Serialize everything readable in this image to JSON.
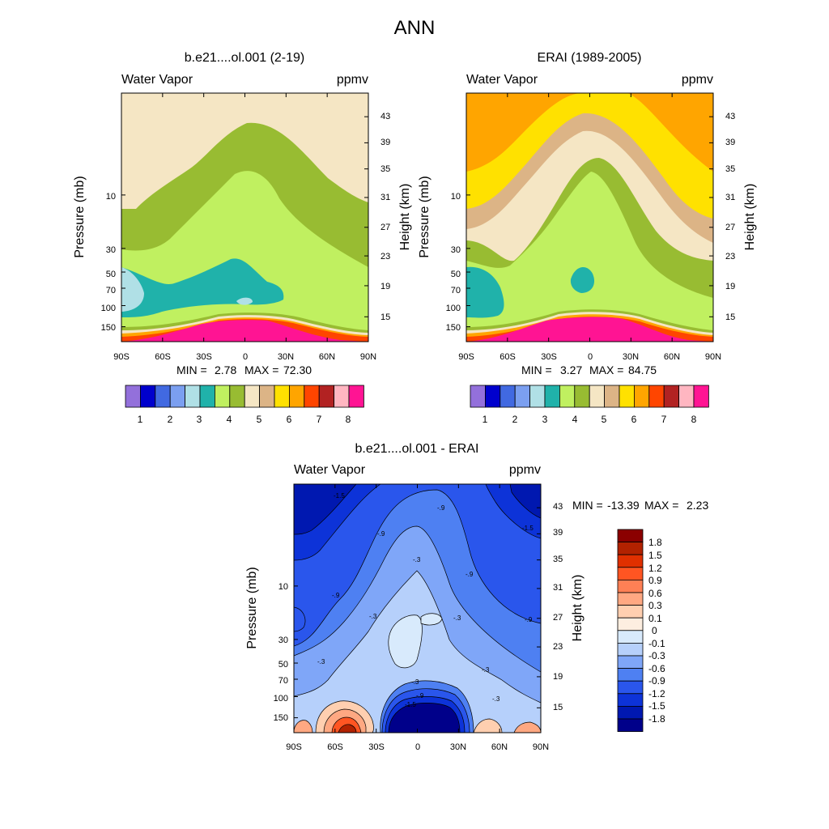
{
  "figure": {
    "title": "ANN"
  },
  "chart_data": [
    {
      "type": "contour",
      "title": "b.e21....ol.001 (2-19)",
      "left_label": "Water Vapor",
      "right_label": "ppmv",
      "xlabel": "",
      "ylabel": "Pressure (mb)",
      "ylabel_right": "Height (km)",
      "x_ticks": [
        "90S",
        "60S",
        "30S",
        "0",
        "30N",
        "60N",
        "90N"
      ],
      "y_ticks": [
        "10",
        "30",
        "50",
        "70",
        "100",
        "150"
      ],
      "height_ticks": [
        "43",
        "39",
        "35",
        "31",
        "27",
        "23",
        "19",
        "15"
      ],
      "min_label": "MIN =",
      "min_value": "2.78",
      "max_label": "MAX =",
      "max_value": "72.30",
      "colorbar": {
        "colors": [
          "#9370db",
          "#0000cd",
          "#4169e1",
          "#7b9ff0",
          "#b0e0e6",
          "#20b2aa",
          "#c0f060",
          "#98bc32",
          "#f5e6c4",
          "#dcb486",
          "#ffe100",
          "#ffa500",
          "#ff4500",
          "#b22222",
          "#ffb6c1",
          "#ff1493"
        ],
        "labels": [
          "1",
          "2",
          "3",
          "4",
          "5",
          "6",
          "7",
          "8"
        ]
      }
    },
    {
      "type": "contour",
      "title": "ERAI (1989-2005)",
      "left_label": "Water Vapor",
      "right_label": "ppmv",
      "xlabel": "",
      "ylabel": "Pressure (mb)",
      "ylabel_right": "Height (km)",
      "x_ticks": [
        "90S",
        "60S",
        "30S",
        "0",
        "30N",
        "60N",
        "90N"
      ],
      "y_ticks": [
        "10",
        "30",
        "50",
        "70",
        "100",
        "150"
      ],
      "height_ticks": [
        "43",
        "39",
        "35",
        "31",
        "27",
        "23",
        "19",
        "15"
      ],
      "min_label": "MIN =",
      "min_value": "3.27",
      "max_label": "MAX =",
      "max_value": "84.75",
      "colorbar": {
        "colors": [
          "#9370db",
          "#0000cd",
          "#4169e1",
          "#7b9ff0",
          "#b0e0e6",
          "#20b2aa",
          "#c0f060",
          "#98bc32",
          "#f5e6c4",
          "#dcb486",
          "#ffe100",
          "#ffa500",
          "#ff4500",
          "#b22222",
          "#ffb6c1",
          "#ff1493"
        ],
        "labels": [
          "1",
          "2",
          "3",
          "4",
          "5",
          "6",
          "7",
          "8"
        ]
      }
    },
    {
      "type": "contour",
      "title": "b.e21....ol.001 - ERAI",
      "left_label": "Water Vapor",
      "right_label": "ppmv",
      "xlabel": "",
      "ylabel": "Pressure (mb)",
      "ylabel_right": "Height (km)",
      "x_ticks": [
        "90S",
        "60S",
        "30S",
        "0",
        "30N",
        "60N",
        "90N"
      ],
      "y_ticks": [
        "10",
        "30",
        "50",
        "70",
        "100",
        "150"
      ],
      "height_ticks": [
        "43",
        "39",
        "35",
        "31",
        "27",
        "23",
        "19",
        "15"
      ],
      "min_label": "MIN =",
      "min_value": "-13.39",
      "max_label": "MAX =",
      "max_value": "2.23",
      "contour_labels": [
        "-1.5",
        "-.9",
        "-.9",
        "-1.5",
        "-.3",
        "-.9",
        "-.9",
        "-.9",
        "-.3",
        "-.3",
        "-.3",
        "-.3",
        "-.3",
        "-.3",
        "-.9",
        "-1.5"
      ],
      "colorbar": {
        "colors": [
          "#8b0000",
          "#b22200",
          "#e03000",
          "#ff5522",
          "#ff8055",
          "#ffa882",
          "#ffcfb0",
          "#fdeee0",
          "#d8eafc",
          "#b6d0fb",
          "#7fa6f8",
          "#4e80f2",
          "#2a56ec",
          "#0d33d8",
          "#0018b0",
          "#00008a"
        ],
        "labels": [
          "1.8",
          "1.5",
          "1.2",
          "0.9",
          "0.6",
          "0.3",
          "0.1",
          "0",
          "-0.1",
          "-0.3",
          "-0.6",
          "-0.9",
          "-1.2",
          "-1.5",
          "-1.8"
        ]
      }
    }
  ]
}
